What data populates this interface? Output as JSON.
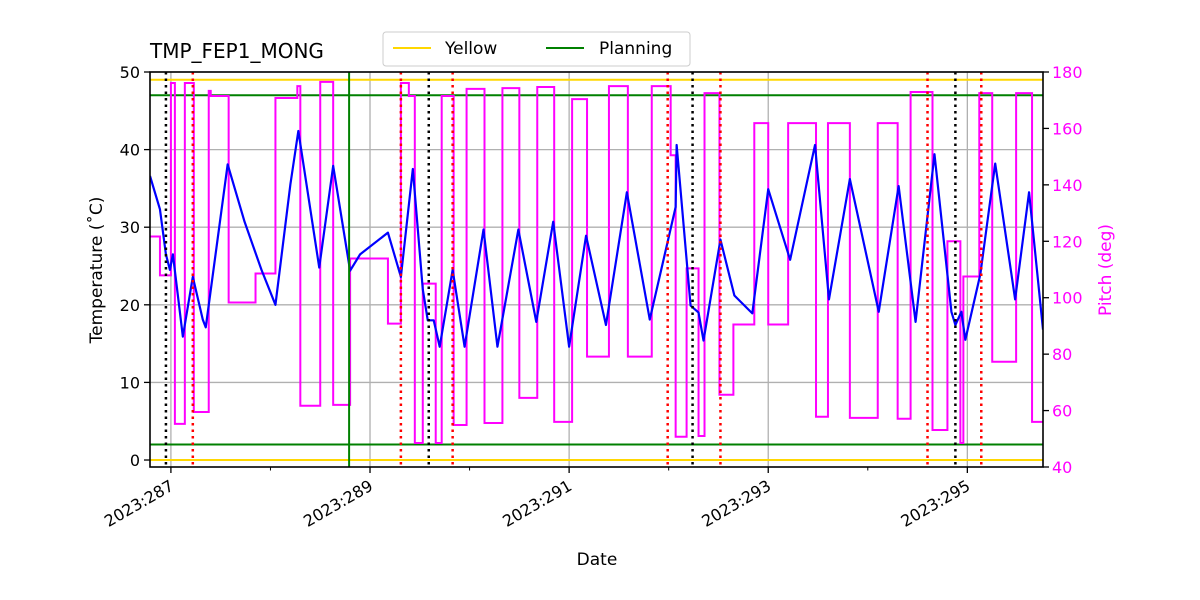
{
  "chart_data": {
    "type": "line",
    "title": "TMP_FEP1_MONG",
    "xlabel": "Date",
    "ylabel": "Temperature (˚C)",
    "y2label": "Pitch (deg)",
    "xlim": [
      286.79,
      295.76
    ],
    "ylim": [
      -0.9,
      50
    ],
    "y2lim": [
      40,
      180
    ],
    "grid": true,
    "legend_placement": "top-center",
    "x_ticks": [
      {
        "value": 287,
        "label": "2023:287"
      },
      {
        "value": 289,
        "label": "2023:289"
      },
      {
        "value": 291,
        "label": "2023:291"
      },
      {
        "value": 293,
        "label": "2023:293"
      },
      {
        "value": 295,
        "label": "2023:295"
      }
    ],
    "x_minor_ticks": [
      288,
      290,
      292,
      294
    ],
    "y_ticks": [
      0,
      10,
      20,
      30,
      40,
      50
    ],
    "y2_ticks": [
      40,
      60,
      80,
      100,
      120,
      140,
      160,
      180
    ],
    "colors": {
      "temperature": "#0000ff",
      "pitch": "#ff00ff",
      "yellow": "#ffd700",
      "planning": "#008000",
      "black_marker": "#000000",
      "red_marker": "#ff0000",
      "grid": "#b0b0b0"
    },
    "legend": [
      {
        "name": "Yellow",
        "color": "#ffd700"
      },
      {
        "name": "Planning",
        "color": "#008000"
      }
    ],
    "limit_lines": {
      "yellow": [
        0,
        49
      ],
      "planning": [
        2,
        47
      ]
    },
    "vertical_lines": {
      "planning": [
        288.79
      ],
      "black_dotted": [
        286.95,
        289.59,
        292.24,
        294.88
      ],
      "red_dotted": [
        287.22,
        289.31,
        289.83,
        291.99,
        292.52,
        294.6,
        295.14
      ]
    },
    "temperature": [
      [
        286.79,
        36.6
      ],
      [
        286.89,
        32.3
      ],
      [
        286.95,
        26.5
      ],
      [
        286.99,
        24.5
      ],
      [
        287.02,
        26.5
      ],
      [
        287.12,
        15.9
      ],
      [
        287.22,
        23.6
      ],
      [
        287.32,
        18.1
      ],
      [
        287.35,
        17.1
      ],
      [
        287.57,
        38.1
      ],
      [
        287.74,
        30.7
      ],
      [
        287.91,
        24.5
      ],
      [
        288.05,
        20.0
      ],
      [
        288.2,
        35.5
      ],
      [
        288.28,
        42.4
      ],
      [
        288.49,
        24.8
      ],
      [
        288.63,
        37.9
      ],
      [
        288.8,
        24.4
      ],
      [
        288.9,
        26.5
      ],
      [
        289.18,
        29.3
      ],
      [
        289.31,
        23.6
      ],
      [
        289.43,
        37.5
      ],
      [
        289.53,
        22.0
      ],
      [
        289.58,
        18.0
      ],
      [
        289.64,
        18.0
      ],
      [
        289.7,
        14.6
      ],
      [
        289.83,
        24.5
      ],
      [
        289.95,
        14.6
      ],
      [
        290.14,
        29.7
      ],
      [
        290.28,
        14.6
      ],
      [
        290.49,
        29.7
      ],
      [
        290.67,
        17.8
      ],
      [
        290.84,
        30.7
      ],
      [
        291.0,
        14.6
      ],
      [
        291.17,
        28.9
      ],
      [
        291.37,
        17.4
      ],
      [
        291.58,
        34.5
      ],
      [
        291.81,
        18.1
      ],
      [
        292.07,
        32.6
      ],
      [
        292.08,
        40.6
      ],
      [
        292.22,
        19.9
      ],
      [
        292.3,
        19.0
      ],
      [
        292.35,
        15.4
      ],
      [
        292.52,
        28.4
      ],
      [
        292.66,
        21.2
      ],
      [
        292.84,
        18.9
      ],
      [
        293.0,
        34.9
      ],
      [
        293.22,
        25.8
      ],
      [
        293.47,
        40.6
      ],
      [
        293.61,
        20.7
      ],
      [
        293.82,
        36.2
      ],
      [
        294.11,
        19.1
      ],
      [
        294.31,
        35.3
      ],
      [
        294.48,
        17.8
      ],
      [
        294.67,
        39.4
      ],
      [
        294.84,
        19.1
      ],
      [
        294.88,
        17.4
      ],
      [
        294.94,
        19.1
      ],
      [
        294.98,
        15.5
      ],
      [
        295.13,
        23.9
      ],
      [
        295.28,
        38.2
      ],
      [
        295.48,
        20.7
      ],
      [
        295.62,
        34.5
      ],
      [
        295.76,
        16.8
      ]
    ],
    "pitch_steps": [
      [
        286.79,
        121.7
      ],
      [
        286.89,
        107.9
      ],
      [
        287.0,
        176.1
      ],
      [
        287.04,
        55.3
      ],
      [
        287.14,
        176.1
      ],
      [
        287.23,
        59.5
      ],
      [
        287.38,
        173.3
      ],
      [
        287.4,
        171.5
      ],
      [
        287.58,
        98.3
      ],
      [
        287.85,
        108.6
      ],
      [
        288.05,
        170.8
      ],
      [
        288.27,
        175.0
      ],
      [
        288.3,
        61.7
      ],
      [
        288.5,
        176.5
      ],
      [
        288.63,
        62.0
      ],
      [
        288.8,
        113.9
      ],
      [
        289.18,
        90.8
      ],
      [
        289.31,
        176.1
      ],
      [
        289.39,
        171.5
      ],
      [
        289.45,
        48.5
      ],
      [
        289.53,
        105.0
      ],
      [
        289.66,
        48.5
      ],
      [
        289.72,
        171.5
      ],
      [
        289.84,
        54.9
      ],
      [
        289.97,
        174.0
      ],
      [
        290.15,
        55.6
      ],
      [
        290.33,
        174.3
      ],
      [
        290.5,
        64.5
      ],
      [
        290.68,
        174.7
      ],
      [
        290.85,
        56.0
      ],
      [
        291.03,
        170.4
      ],
      [
        291.18,
        79.1
      ],
      [
        291.4,
        175.0
      ],
      [
        291.59,
        79.1
      ],
      [
        291.83,
        175.0
      ],
      [
        292.02,
        150.5
      ],
      [
        292.07,
        50.7
      ],
      [
        292.18,
        110.4
      ],
      [
        292.3,
        51.0
      ],
      [
        292.36,
        172.5
      ],
      [
        292.51,
        65.6
      ],
      [
        292.65,
        90.5
      ],
      [
        292.86,
        161.9
      ],
      [
        293.0,
        90.5
      ],
      [
        293.2,
        161.9
      ],
      [
        293.48,
        57.8
      ],
      [
        293.6,
        161.9
      ],
      [
        293.82,
        57.4
      ],
      [
        294.1,
        161.9
      ],
      [
        294.3,
        57.1
      ],
      [
        294.43,
        172.9
      ],
      [
        294.65,
        53.1
      ],
      [
        294.8,
        120.0
      ],
      [
        294.93,
        48.5
      ],
      [
        294.96,
        107.5
      ],
      [
        295.12,
        172.5
      ],
      [
        295.25,
        77.3
      ],
      [
        295.49,
        172.5
      ],
      [
        295.65,
        56.0
      ],
      [
        295.76,
        56.0
      ]
    ]
  }
}
